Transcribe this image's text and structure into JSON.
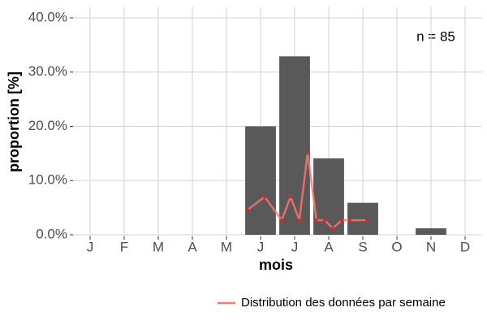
{
  "chart_data": {
    "type": "bar",
    "x_label": "mois",
    "y_label": "proportion [%]",
    "annotation": "n = 85",
    "categories": [
      "J",
      "F",
      "M",
      "A",
      "M",
      "J",
      "J",
      "A",
      "S",
      "O",
      "N",
      "D"
    ],
    "values": [
      0,
      0,
      0,
      0,
      0,
      20,
      32.9,
      14.1,
      5.9,
      0,
      1.2,
      0
    ],
    "color": "#595959",
    "ylim": [
      0,
      42
    ],
    "yticks": [
      {
        "value": 0,
        "label": "0.0%"
      },
      {
        "value": 10,
        "label": "10.0%"
      },
      {
        "value": 20,
        "label": "20.0%"
      },
      {
        "value": 30,
        "label": "30.0%"
      },
      {
        "value": 40,
        "label": "40.0%"
      }
    ],
    "grid": true,
    "legend_position": "bottom",
    "series": [
      {
        "name": "Distribution des données par semaine",
        "type": "line",
        "color": "#f8766d",
        "point_color": "#e8202a",
        "x": [
          5.62,
          6.12,
          6.62,
          6.88,
          7.14,
          7.38,
          7.64,
          7.88,
          8.12,
          8.38,
          8.62,
          9.12
        ],
        "values": [
          4.6,
          7.0,
          2.7,
          7.0,
          2.7,
          15.1,
          2.7,
          2.7,
          1.2,
          2.7,
          2.7,
          2.7
        ]
      }
    ]
  }
}
